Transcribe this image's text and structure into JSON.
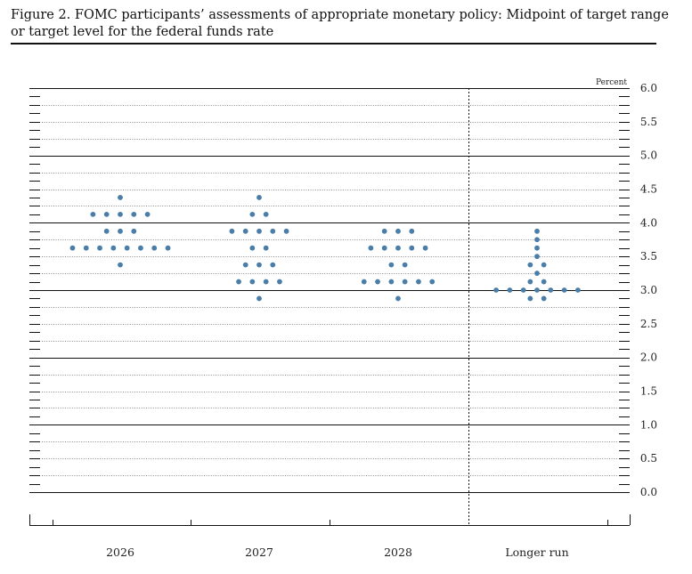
{
  "figure": {
    "title": "Figure 2. FOMC participants’ assessments of appropriate monetary policy: Midpoint of target range or target level for the federal funds rate"
  },
  "chart_data": {
    "type": "scatter",
    "unit_label": "Percent",
    "ylim": [
      0.0,
      6.0
    ],
    "y_ticks": [
      "6.0",
      "5.5",
      "5.0",
      "4.5",
      "4.0",
      "3.5",
      "3.0",
      "2.5",
      "2.0",
      "1.5",
      "1.0",
      "0.5",
      "0.0"
    ],
    "categories": [
      "2026",
      "2027",
      "2028",
      "Longer run"
    ],
    "dot_color": "#4a7ea8",
    "columns": [
      {
        "category": "2026",
        "rows": [
          {
            "y": 4.375,
            "count": 1
          },
          {
            "y": 4.125,
            "count": 5
          },
          {
            "y": 3.875,
            "count": 3
          },
          {
            "y": 3.625,
            "count": 8
          },
          {
            "y": 3.375,
            "count": 1
          }
        ]
      },
      {
        "category": "2027",
        "rows": [
          {
            "y": 4.375,
            "count": 1
          },
          {
            "y": 4.125,
            "count": 2
          },
          {
            "y": 3.875,
            "count": 5
          },
          {
            "y": 3.625,
            "count": 2
          },
          {
            "y": 3.375,
            "count": 3
          },
          {
            "y": 3.125,
            "count": 4
          },
          {
            "y": 2.875,
            "count": 1
          }
        ]
      },
      {
        "category": "2028",
        "rows": [
          {
            "y": 3.875,
            "count": 3
          },
          {
            "y": 3.625,
            "count": 5
          },
          {
            "y": 3.375,
            "count": 2
          },
          {
            "y": 3.125,
            "count": 6
          },
          {
            "y": 2.875,
            "count": 1
          }
        ]
      },
      {
        "category": "Longer run",
        "rows": [
          {
            "y": 3.875,
            "count": 1
          },
          {
            "y": 3.75,
            "count": 1
          },
          {
            "y": 3.625,
            "count": 1
          },
          {
            "y": 3.5,
            "count": 1
          },
          {
            "y": 3.375,
            "count": 2
          },
          {
            "y": 3.25,
            "count": 1
          },
          {
            "y": 3.125,
            "count": 2
          },
          {
            "y": 3.0,
            "count": 7
          },
          {
            "y": 2.875,
            "count": 2
          }
        ]
      }
    ]
  }
}
